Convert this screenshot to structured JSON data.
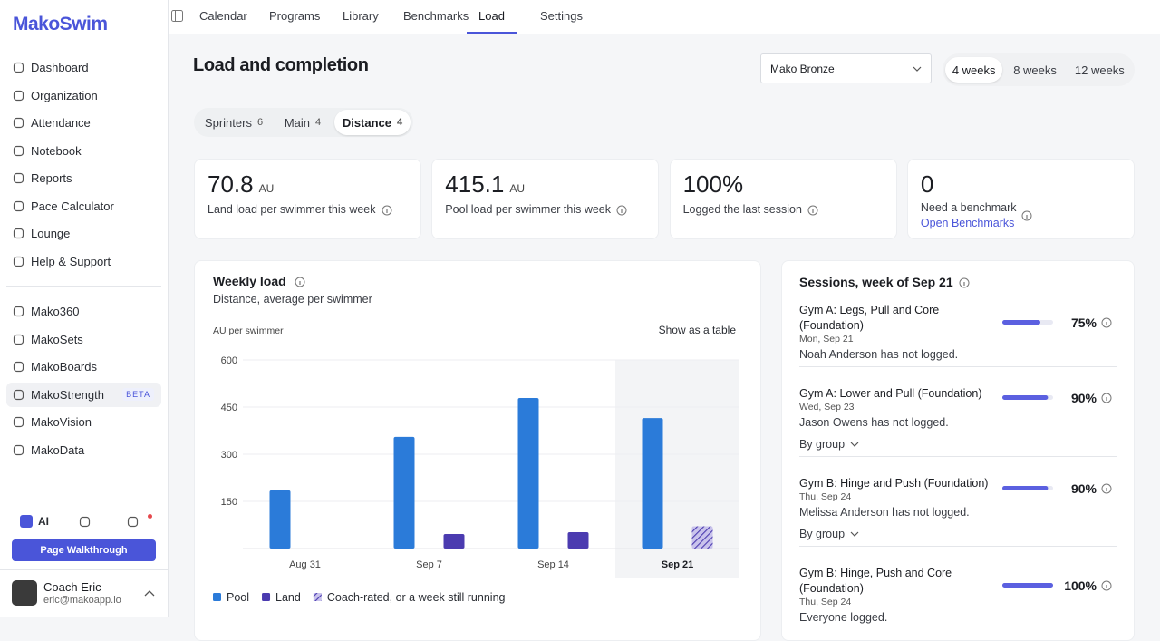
{
  "sidebar": {
    "logo": "MakoSwim",
    "nav": [
      "Dashboard",
      "Organization",
      "Attendance",
      "Notebook",
      "Reports",
      "Pace Calculator",
      "Lounge",
      "Help & Support"
    ],
    "apps": [
      "Mako360",
      "MakoSets",
      "MakoBoards",
      "MakoStrength",
      "MakoVision",
      "MakoData"
    ],
    "beta": "BETA",
    "ai": "AI",
    "walkthrough": "Page Walkthrough",
    "user": {
      "name": "Coach Eric",
      "email": "eric@makoapp.io"
    }
  },
  "tabs": [
    "Calendar",
    "Programs",
    "Library",
    "Benchmarks",
    "Load",
    "Settings"
  ],
  "header": {
    "title": "Load and completion",
    "team": "Mako Bronze",
    "ranges": [
      "4 weeks",
      "8 weeks",
      "12 weeks"
    ]
  },
  "groups": [
    {
      "name": "Sprinters",
      "count": "6"
    },
    {
      "name": "Main",
      "count": "4"
    },
    {
      "name": "Distance",
      "count": "4"
    }
  ],
  "stats": [
    {
      "value": "70.8",
      "unit": "AU",
      "label": "Land load per swimmer this week"
    },
    {
      "value": "415.1",
      "unit": "AU",
      "label": "Pool load per swimmer this week"
    },
    {
      "value": "100%",
      "label": "Logged the last session"
    },
    {
      "value": "0",
      "label": "Need a benchmark",
      "link": "Open Benchmarks"
    }
  ],
  "chart_data": {
    "type": "bar",
    "title": "Weekly load",
    "subtitle": "Distance, average per swimmer",
    "y_label": "AU per swimmer",
    "table_toggle": "Show as a table",
    "categories": [
      "Aug 31",
      "Sep 7",
      "Sep 14",
      "Sep 21"
    ],
    "series": [
      {
        "name": "Pool",
        "color": "#2b7bd9",
        "values": [
          185,
          355,
          479,
          415.1
        ]
      },
      {
        "name": "Land",
        "color": "#4b3bb0",
        "values": [
          null,
          46,
          52,
          70.8
        ]
      }
    ],
    "running_legend": "Coach-rated, or a week still running",
    "highlight": 3,
    "ylim": [
      0,
      600
    ],
    "yticks": [
      150,
      300,
      450,
      600
    ],
    "grid": true
  },
  "sessions": {
    "title": "Sessions, week of Sep 21",
    "items": [
      {
        "title": "Gym A: Legs, Pull and Core (Foundation)",
        "date": "Mon, Sep 21",
        "note": "Noah Anderson has not logged.",
        "percent": 75,
        "percent_label": "75%"
      },
      {
        "title": "Gym A: Lower and Pull (Foundation)",
        "date": "Wed, Sep 23",
        "note": "Jason Owens has not logged.",
        "percent": 90,
        "percent_label": "90%",
        "group": "By group"
      },
      {
        "title": "Gym B: Hinge and Push (Foundation)",
        "date": "Thu, Sep 24",
        "note": "Melissa Anderson has not logged.",
        "percent": 90,
        "percent_label": "90%",
        "group": "By group"
      },
      {
        "title": "Gym B: Hinge, Push and Core (Foundation)",
        "date": "Thu, Sep 24",
        "note": "Everyone logged.",
        "percent": 100,
        "percent_label": "100%"
      }
    ]
  }
}
